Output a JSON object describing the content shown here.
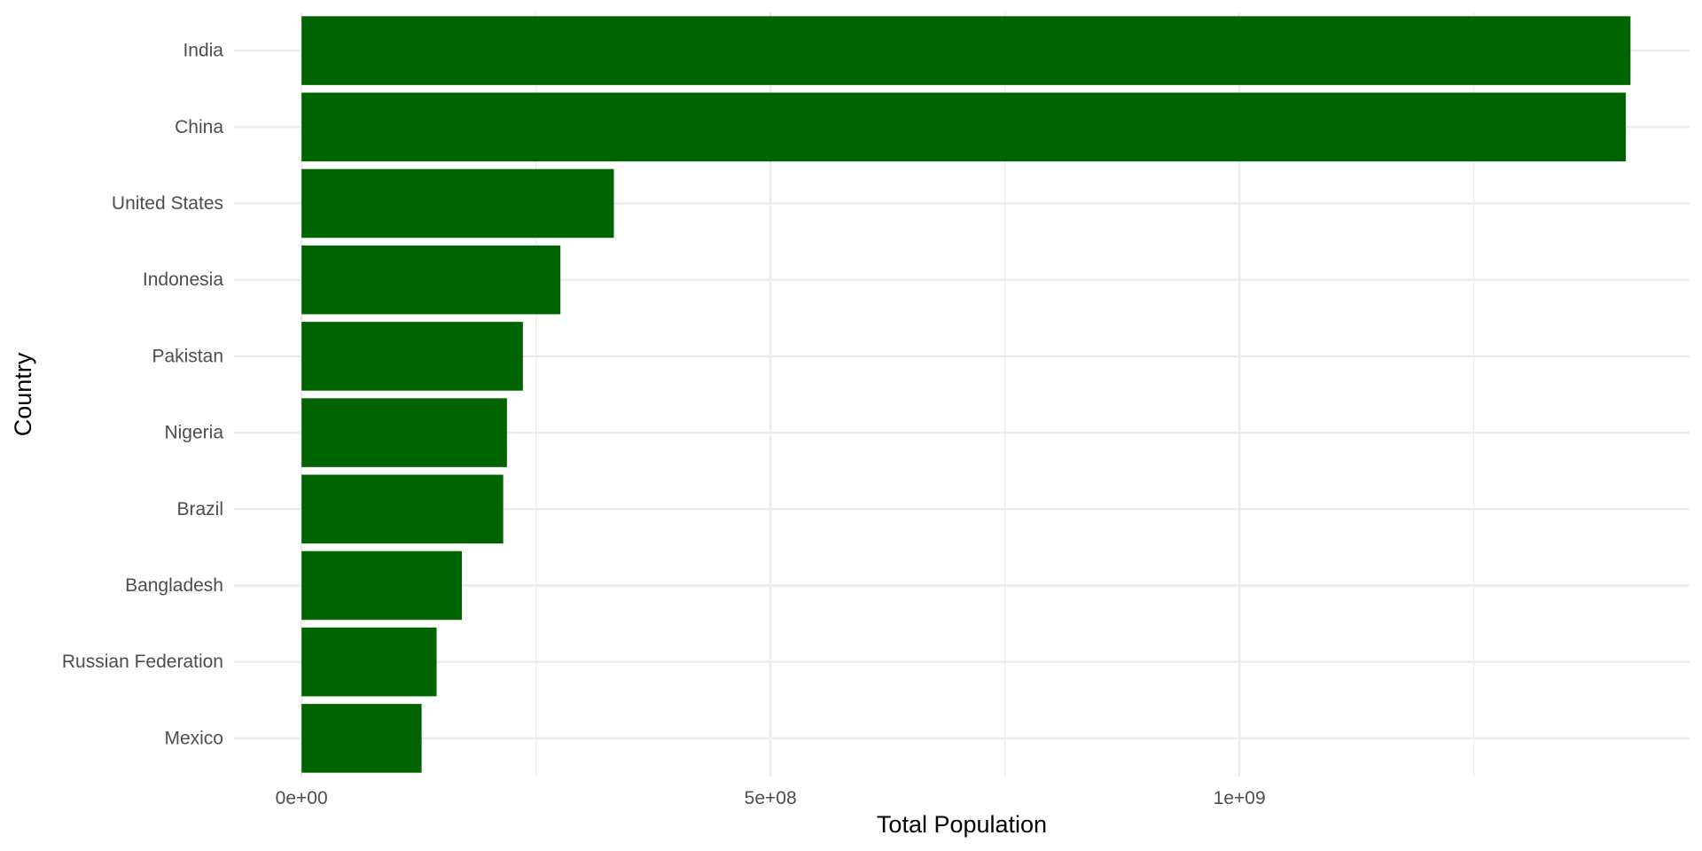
{
  "chart_data": {
    "type": "bar",
    "orientation": "horizontal",
    "title": "",
    "xlabel": "Total Population",
    "ylabel": "Country",
    "categories": [
      "India",
      "China",
      "United States",
      "Indonesia",
      "Pakistan",
      "Nigeria",
      "Brazil",
      "Bangladesh",
      "Russian Federation",
      "Mexico"
    ],
    "values": [
      1417000000,
      1412000000,
      333000000,
      276000000,
      236000000,
      219000000,
      215000000,
      171000000,
      144000000,
      128000000
    ],
    "xlim": [
      -72000000,
      1480000000
    ],
    "x_major_ticks": [
      0,
      500000000,
      1000000000
    ],
    "x_tick_labels": [
      "0e+00",
      "5e+08",
      "1e+09"
    ],
    "x_minor_ticks": [
      250000000,
      750000000,
      1250000000
    ],
    "grid": true,
    "legend": "none",
    "colors": {
      "bar": "#006400",
      "grid": "#ebebeb",
      "background": "#ffffff"
    }
  }
}
